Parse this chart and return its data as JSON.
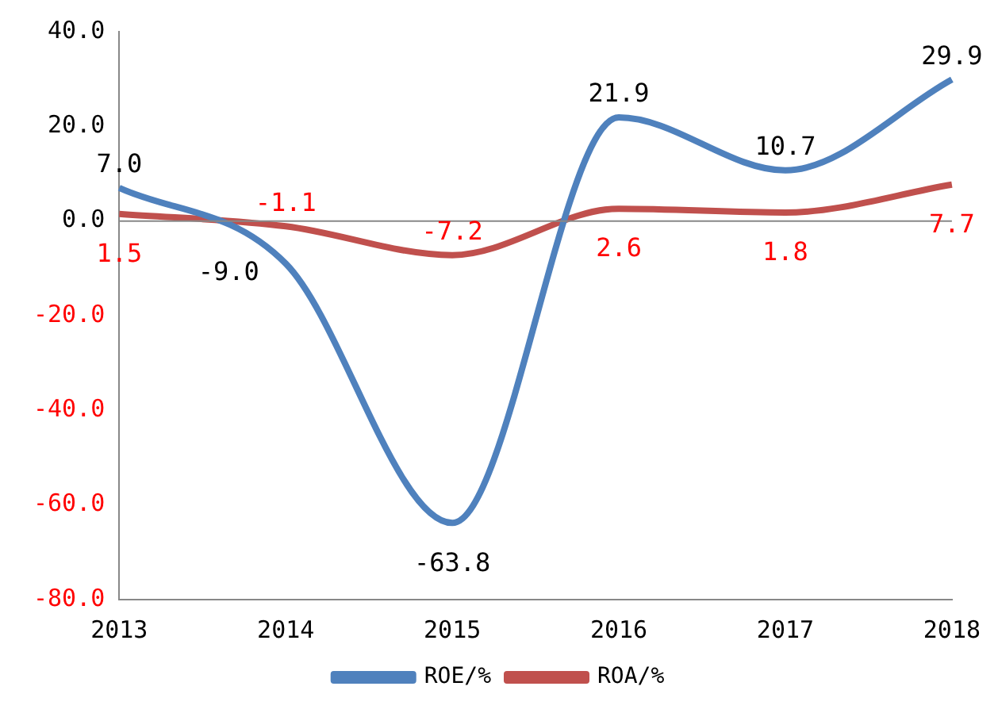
{
  "chart_data": {
    "type": "line",
    "categories": [
      "2013",
      "2014",
      "2015",
      "2016",
      "2017",
      "2018"
    ],
    "series": [
      {
        "name": "ROE/%",
        "color": "#4f81bd",
        "values": [
          7.0,
          -9.0,
          -63.8,
          21.9,
          10.7,
          29.9
        ],
        "value_labels": [
          "7.0",
          "-9.0",
          "-63.8",
          "21.9",
          "10.7",
          "29.9"
        ]
      },
      {
        "name": "ROA/%",
        "color": "#c0504d",
        "values": [
          1.5,
          -1.1,
          -7.2,
          2.6,
          1.8,
          7.7
        ],
        "value_labels": [
          "1.5",
          "-1.1",
          "-7.2",
          "2.6",
          "1.8",
          "7.7"
        ]
      }
    ],
    "ylim": [
      -80,
      40
    ],
    "yticks": [
      {
        "value": -80,
        "label": "-80.0"
      },
      {
        "value": -60,
        "label": "-60.0"
      },
      {
        "value": -40,
        "label": "-40.0"
      },
      {
        "value": -20,
        "label": "-20.0"
      },
      {
        "value": 0,
        "label": "0.0"
      },
      {
        "value": 20,
        "label": "20.0"
      },
      {
        "value": 40,
        "label": "40.0"
      }
    ],
    "grid": false,
    "ref_lines": [
      {
        "axis": "y",
        "value": 0,
        "color": "#888888"
      }
    ],
    "legend": "bottom",
    "marker": "none",
    "line_style": "solid"
  }
}
